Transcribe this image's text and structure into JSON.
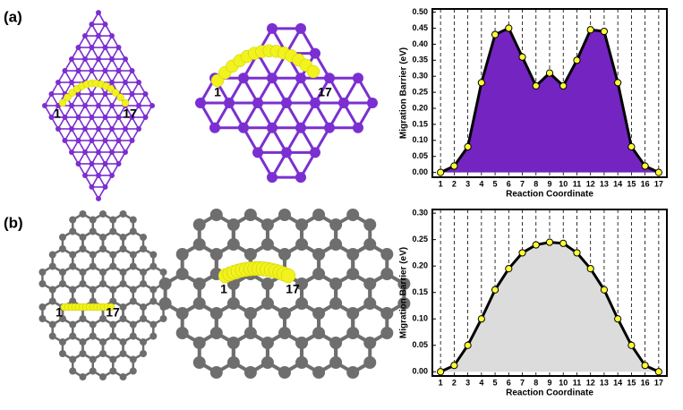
{
  "panels": [
    {
      "label": "(a)",
      "structures": [
        {
          "start": "1",
          "end": "17"
        },
        {
          "start": "1",
          "end": "17"
        }
      ]
    },
    {
      "label": "(b)",
      "structures": [
        {
          "start": "1",
          "end": "17"
        },
        {
          "start": "1",
          "end": "17"
        }
      ]
    }
  ],
  "chart_data": [
    {
      "type": "area",
      "x_label": "Reaction Coordinate",
      "y_label": "Migration Barrier (eV)",
      "x": [
        1,
        2,
        3,
        4,
        5,
        6,
        7,
        8,
        9,
        10,
        11,
        12,
        13,
        14,
        15,
        16,
        17
      ],
      "series": [
        {
          "color": "#7424c0",
          "values": [
            0.0,
            0.02,
            0.08,
            0.28,
            0.43,
            0.45,
            0.36,
            0.27,
            0.31,
            0.27,
            0.35,
            0.445,
            0.44,
            0.28,
            0.08,
            0.02,
            0.0
          ]
        }
      ],
      "xlim": [
        0.4,
        17.6
      ],
      "xticks": [
        1,
        2,
        3,
        4,
        5,
        6,
        7,
        8,
        9,
        10,
        11,
        12,
        13,
        14,
        15,
        16,
        17
      ],
      "ylim": [
        -0.015,
        0.51
      ],
      "yticks": [
        {
          "value": 0,
          "label": "0.00"
        },
        {
          "value": 0.05,
          "label": "0.05"
        },
        {
          "value": 0.1,
          "label": "0.10"
        },
        {
          "value": 0.15,
          "label": "0.15"
        },
        {
          "value": 0.2,
          "label": "0.20"
        },
        {
          "value": 0.25,
          "label": "0.25"
        },
        {
          "value": 0.3,
          "label": "0.30"
        },
        {
          "value": 0.35,
          "label": "0.35"
        },
        {
          "value": 0.4,
          "label": "0.40"
        },
        {
          "value": 0.45,
          "label": "0.45"
        },
        {
          "value": 0.5,
          "label": "0.50"
        }
      ],
      "grid": true
    },
    {
      "type": "area",
      "x_label": "Reaction Coordinate",
      "y_label": "Migration Barrier (eV)",
      "x": [
        1,
        2,
        3,
        4,
        5,
        6,
        7,
        8,
        9,
        10,
        11,
        12,
        13,
        14,
        15,
        16,
        17
      ],
      "series": [
        {
          "color": "#dcdcdc",
          "values": [
            0.0,
            0.012,
            0.05,
            0.1,
            0.155,
            0.195,
            0.225,
            0.24,
            0.245,
            0.243,
            0.225,
            0.195,
            0.155,
            0.1,
            0.05,
            0.012,
            0.0
          ]
        }
      ],
      "xlim": [
        0.4,
        17.6
      ],
      "xticks": [
        1,
        2,
        3,
        4,
        5,
        6,
        7,
        8,
        9,
        10,
        11,
        12,
        13,
        14,
        15,
        16,
        17
      ],
      "ylim": [
        -0.008,
        0.307
      ],
      "yticks": [
        {
          "value": 0,
          "label": "0.00"
        },
        {
          "value": 0.05,
          "label": "0.05"
        },
        {
          "value": 0.1,
          "label": "0.10"
        },
        {
          "value": 0.15,
          "label": "0.15"
        },
        {
          "value": 0.2,
          "label": "0.20"
        },
        {
          "value": 0.25,
          "label": "0.25"
        },
        {
          "value": 0.3,
          "label": "0.30"
        }
      ],
      "grid": true
    }
  ]
}
